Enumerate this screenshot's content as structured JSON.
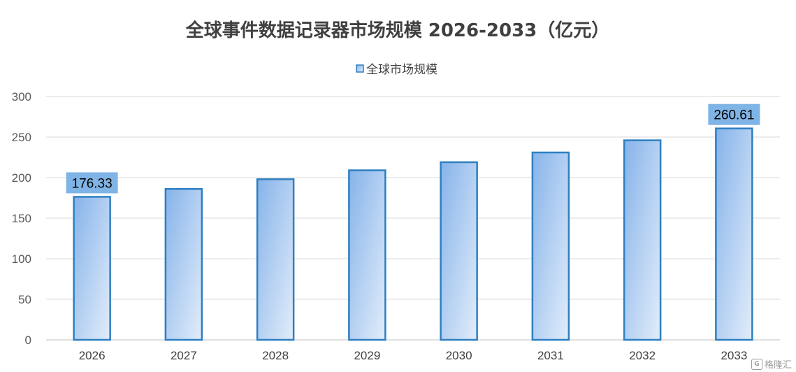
{
  "chart_data": {
    "type": "bar",
    "title": "全球事件数据记录器市场规模 2026-2033（亿元）",
    "categories": [
      "2026",
      "2027",
      "2028",
      "2029",
      "2030",
      "2031",
      "2032",
      "2033"
    ],
    "series": [
      {
        "name": "全球市场规模",
        "values": [
          176.33,
          186,
          198,
          209,
          219,
          231,
          246,
          260.61
        ]
      }
    ],
    "data_labels": [
      {
        "category": "2026",
        "text": "176.33"
      },
      {
        "category": "2033",
        "text": "260.61"
      }
    ],
    "ylim": [
      0,
      300
    ],
    "yticks": [
      0,
      50,
      100,
      150,
      200,
      250,
      300
    ],
    "grid": true,
    "legend": "top-center",
    "colors": {
      "bar_fill_top": "#86b3ea",
      "bar_fill_bottom": "#dce9f9",
      "bar_stroke": "#2e7fc0",
      "label_bg": "#7fb4e6",
      "grid": "#d9d9d9"
    }
  },
  "watermark": {
    "text": "格隆汇",
    "icon": "G"
  }
}
